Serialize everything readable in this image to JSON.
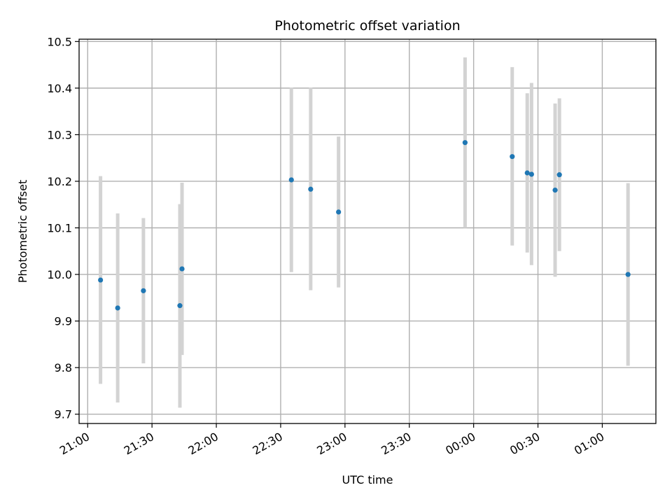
{
  "chart_data": {
    "type": "scatter",
    "title": "Photometric offset variation",
    "xlabel": "UTC time",
    "ylabel": "Photometric offset",
    "x_axis_type": "time",
    "xlim": [
      "2000-01-01T20:56",
      "2000-01-02T01:25"
    ],
    "ylim": [
      9.68,
      10.505
    ],
    "x_ticks": [
      {
        "time": "2000-01-01T21:00",
        "label": "21:00"
      },
      {
        "time": "2000-01-01T21:30",
        "label": "21:30"
      },
      {
        "time": "2000-01-01T22:00",
        "label": "22:00"
      },
      {
        "time": "2000-01-01T22:30",
        "label": "22:30"
      },
      {
        "time": "2000-01-01T23:00",
        "label": "23:00"
      },
      {
        "time": "2000-01-01T23:30",
        "label": "23:30"
      },
      {
        "time": "2000-01-02T00:00",
        "label": "00:00"
      },
      {
        "time": "2000-01-02T00:30",
        "label": "00:30"
      },
      {
        "time": "2000-01-02T01:00",
        "label": "01:00"
      }
    ],
    "y_ticks": [
      {
        "value": 9.7,
        "label": "9.7"
      },
      {
        "value": 9.8,
        "label": "9.8"
      },
      {
        "value": 9.9,
        "label": "9.9"
      },
      {
        "value": 10.0,
        "label": "10.0"
      },
      {
        "value": 10.1,
        "label": "10.1"
      },
      {
        "value": 10.2,
        "label": "10.2"
      },
      {
        "value": 10.3,
        "label": "10.3"
      },
      {
        "value": 10.4,
        "label": "10.4"
      },
      {
        "value": 10.5,
        "label": "10.5"
      }
    ],
    "grid": true,
    "legend": "none",
    "marker_color": "#1f77b4",
    "errorbar_color": "#d3d3d3",
    "points": [
      {
        "time": "2000-01-01T21:06",
        "y": 9.988,
        "y_low": 9.765,
        "y_high": 10.211
      },
      {
        "time": "2000-01-01T21:14",
        "y": 9.928,
        "y_low": 9.725,
        "y_high": 10.131
      },
      {
        "time": "2000-01-01T21:26",
        "y": 9.965,
        "y_low": 9.809,
        "y_high": 10.121
      },
      {
        "time": "2000-01-01T21:43",
        "y": 9.933,
        "y_low": 9.714,
        "y_high": 10.151
      },
      {
        "time": "2000-01-01T21:44",
        "y": 10.012,
        "y_low": 9.827,
        "y_high": 10.197
      },
      {
        "time": "2000-01-01T22:35",
        "y": 10.203,
        "y_low": 10.005,
        "y_high": 10.401
      },
      {
        "time": "2000-01-01T22:44",
        "y": 10.183,
        "y_low": 9.966,
        "y_high": 10.401
      },
      {
        "time": "2000-01-01T22:57",
        "y": 10.134,
        "y_low": 9.972,
        "y_high": 10.296
      },
      {
        "time": "2000-01-01T23:56",
        "y": 10.283,
        "y_low": 10.1,
        "y_high": 10.466
      },
      {
        "time": "2000-01-02T00:18",
        "y": 10.253,
        "y_low": 10.062,
        "y_high": 10.445
      },
      {
        "time": "2000-01-02T00:25",
        "y": 10.218,
        "y_low": 10.047,
        "y_high": 10.389
      },
      {
        "time": "2000-01-02T00:27",
        "y": 10.215,
        "y_low": 10.02,
        "y_high": 10.411
      },
      {
        "time": "2000-01-02T00:38",
        "y": 10.181,
        "y_low": 9.995,
        "y_high": 10.367
      },
      {
        "time": "2000-01-02T00:40",
        "y": 10.214,
        "y_low": 10.05,
        "y_high": 10.378
      },
      {
        "time": "2000-01-02T01:12",
        "y": 10.0,
        "y_low": 9.804,
        "y_high": 10.196
      }
    ]
  }
}
